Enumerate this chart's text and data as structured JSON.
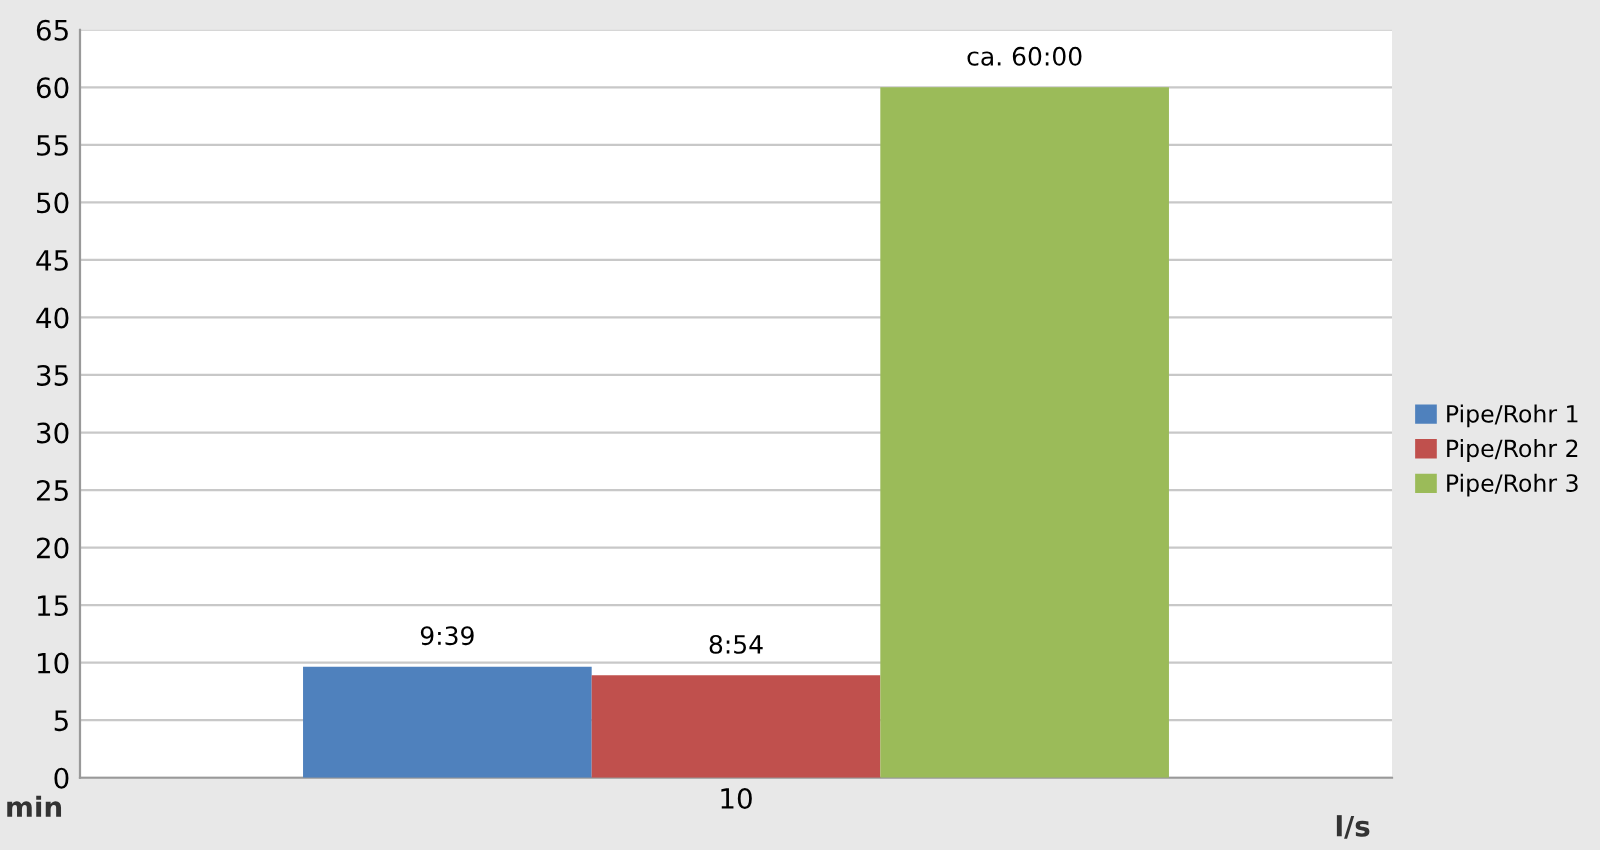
{
  "chart_data": {
    "type": "bar",
    "categories": [
      "10"
    ],
    "xlabel": "l/s",
    "ylabel": "min",
    "series": [
      {
        "name": "Pipe/Rohr 1",
        "color": "#4f81bd",
        "values": [
          9.65
        ],
        "value_labels": [
          "9:39"
        ]
      },
      {
        "name": "Pipe/Rohr 2",
        "color": "#c0504d",
        "values": [
          8.9
        ],
        "value_labels": [
          "8:54"
        ]
      },
      {
        "name": "Pipe/Rohr 3",
        "color": "#9bbb59",
        "values": [
          60
        ],
        "value_labels": [
          "ca. 60:00"
        ]
      }
    ],
    "ylim": [
      0,
      65
    ],
    "yticks": [
      0,
      5,
      10,
      15,
      20,
      25,
      30,
      35,
      40,
      45,
      50,
      55,
      60,
      65
    ],
    "grid": "y",
    "legend": "right"
  }
}
